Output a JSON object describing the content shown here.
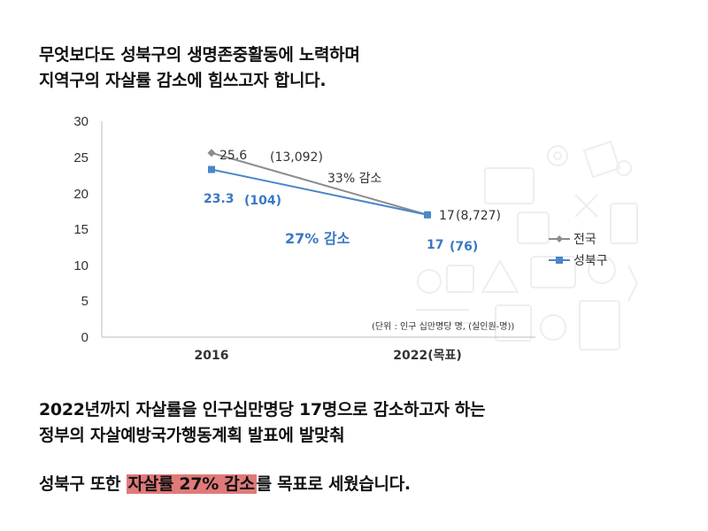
{
  "text": {
    "line1": "무엇보다도 성북구의 생명존중활동에 노력하며",
    "line2": "지역구의 자살률 감소에 힘쓰고자 합니다.",
    "line3": "2022년까지 자살률을 인구십만명당 17명으로 감소하고자 하는",
    "line4": "정부의 자살예방국가행동계획 발표에 발맞춰",
    "line5_pre": "성북구 또한 ",
    "line5_highlight": "자살률 27% 감소",
    "line5_post": "를 목표로 세웠습니다."
  },
  "chart_data": {
    "type": "line",
    "categories": [
      "2016",
      "2022(목표)"
    ],
    "ylim": [
      0,
      30
    ],
    "yticks": [
      "0",
      "5",
      "10",
      "15",
      "20",
      "25",
      "30"
    ],
    "series": [
      {
        "name": "전국",
        "values": [
          25.6,
          17
        ],
        "color": "#8c8c8c",
        "marker": "diamond"
      },
      {
        "name": "성북구",
        "values": [
          23.3,
          17
        ],
        "color": "#4a86c8",
        "marker": "square"
      }
    ],
    "point_labels": {
      "national_2016": "25.6",
      "national_2016_count": "(13,092)",
      "national_2022": "17",
      "national_2022_count": "(8,727)",
      "seongbuk_2016": "23.3",
      "seongbuk_2016_count": "(104)",
      "seongbuk_2022": "17",
      "seongbuk_2022_count": "(76)"
    },
    "annotations": {
      "national_decrease": "33% 감소",
      "seongbuk_decrease": "27% 감소",
      "unit_note": "(단위 : 인구 십만명당 명, (실인원-명))"
    },
    "legend_position": "right",
    "grid": false
  }
}
